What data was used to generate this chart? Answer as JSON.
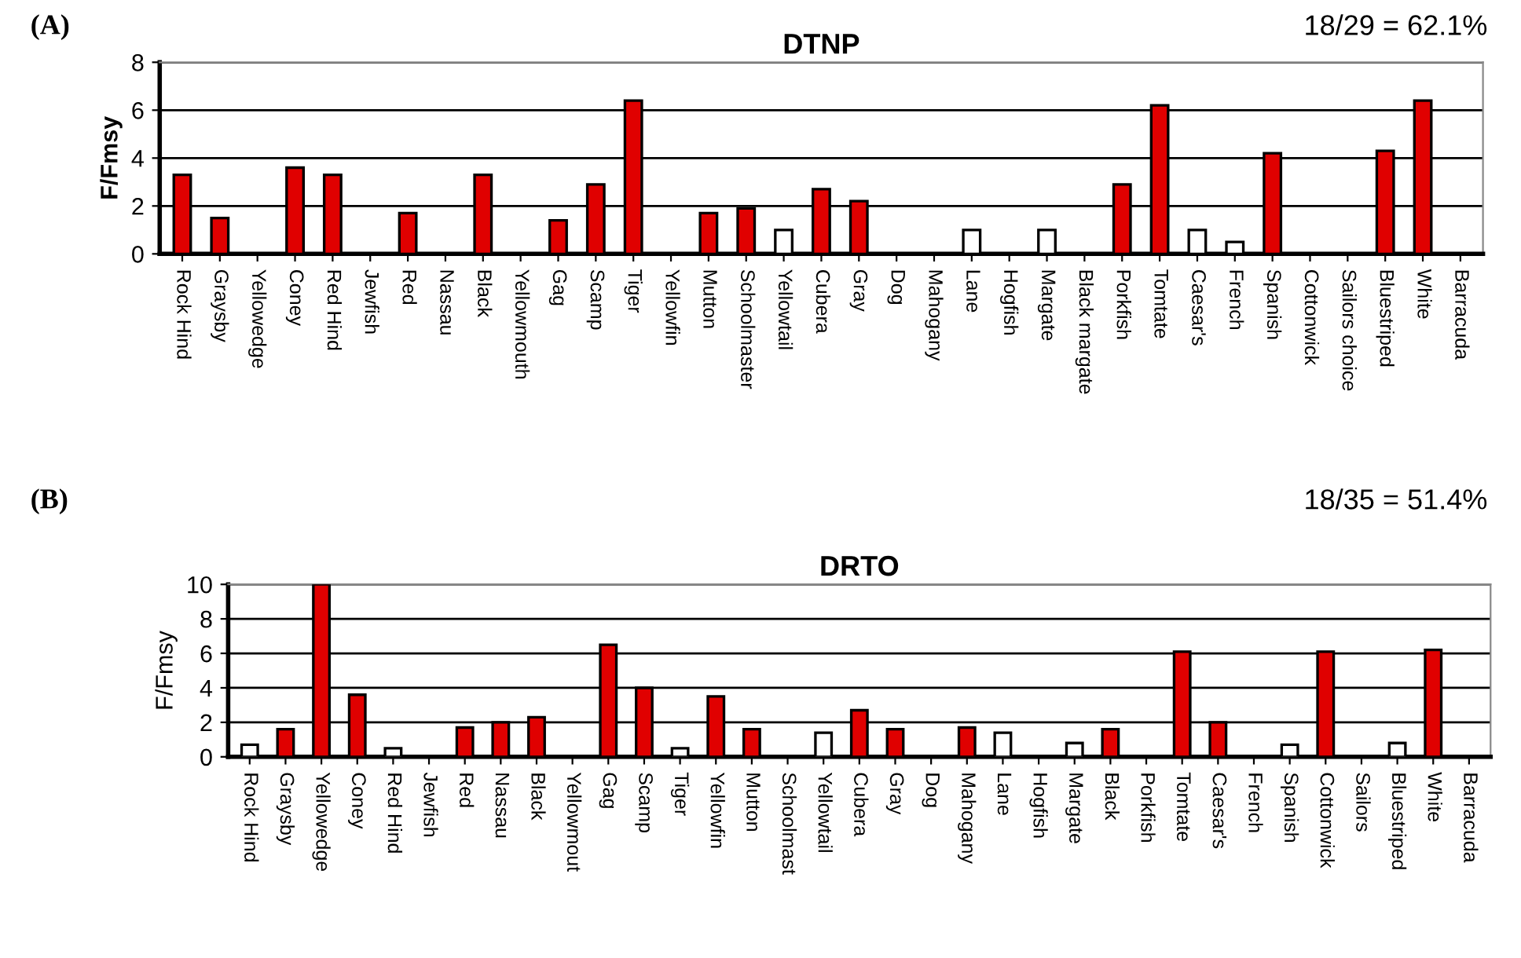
{
  "chart_data": [
    {
      "type": "bar",
      "title": "DTNP",
      "ylabel": "F/Fmsy",
      "annotations": [
        "(A)",
        "18/29 = 62.1%"
      ],
      "categories": [
        "Rock Hind",
        "Graysby",
        "Yellowedge",
        "Coney",
        "Red Hind",
        "Jewfish",
        "Red",
        "Nassau",
        "Black",
        "Yellowmouth",
        "Gag",
        "Scamp",
        "Tiger",
        "Yellowfin",
        "Mutton",
        "Schoolmaster",
        "Yellowtail",
        "Cubera",
        "Gray",
        "Dog",
        "Mahogany",
        "Lane",
        "Hogfish",
        "Margate",
        "Black margate",
        "Porkfish",
        "Tomtate",
        "Caesar's",
        "French",
        "Spanish",
        "Cottonwick",
        "Sailors choice",
        "Bluestriped",
        "White",
        "Barracuda"
      ],
      "values": [
        3.3,
        1.5,
        null,
        3.6,
        3.3,
        null,
        1.7,
        null,
        3.3,
        null,
        1.4,
        2.9,
        6.4,
        null,
        1.7,
        1.9,
        1.0,
        2.7,
        2.2,
        null,
        null,
        1.0,
        null,
        1.0,
        null,
        2.9,
        6.2,
        1.0,
        0.5,
        4.2,
        null,
        null,
        4.3,
        6.4,
        null
      ],
      "colors": [
        "#e00000",
        "#e00000",
        "#e00000",
        "#e00000",
        "#e00000",
        "#e00000",
        "#e00000",
        "#e00000",
        "#e00000",
        "#e00000",
        "#e00000",
        "#e00000",
        "#e00000",
        "#e00000",
        "#e00000",
        "#e00000",
        "#ffffff",
        "#e00000",
        "#e00000",
        "#e00000",
        "#e00000",
        "#ffffff",
        "#e00000",
        "#ffffff",
        "#e00000",
        "#e00000",
        "#e00000",
        "#ffffff",
        "#ffffff",
        "#e00000",
        "#e00000",
        "#e00000",
        "#e00000",
        "#e00000",
        "#e00000"
      ],
      "ylim": [
        0,
        8
      ],
      "yticks": [
        0,
        2,
        4,
        6,
        8
      ],
      "grid": "y"
    },
    {
      "type": "bar",
      "title": "DRTO",
      "ylabel": "F/Fmsy",
      "annotations": [
        "(B)",
        "18/35 = 51.4%"
      ],
      "categories": [
        "Rock Hind",
        "Graysby",
        "Yellowedge",
        "Coney",
        "Red Hind",
        "Jewfish",
        "Red",
        "Nassau",
        "Black",
        "Yellowmout",
        "Gag",
        "Scamp",
        "Tiger",
        "Yellowfin",
        "Mutton",
        "Schoolmast",
        "Yellowtail",
        "Cubera",
        "Gray",
        "Dog",
        "Mahogany",
        "Lane",
        "Hogfish",
        "Margate",
        "Black",
        "Porkfish",
        "Tomtate",
        "Caesar's",
        "French",
        "Spanish",
        "Cottonwick",
        "Sailors",
        "Bluestriped",
        "White",
        "Barracuda"
      ],
      "values": [
        0.7,
        1.6,
        10,
        3.6,
        0.5,
        null,
        1.7,
        2.0,
        2.3,
        null,
        6.5,
        4.0,
        0.5,
        3.5,
        1.6,
        null,
        1.4,
        2.7,
        1.6,
        null,
        1.7,
        1.4,
        null,
        0.8,
        1.6,
        null,
        6.1,
        2.0,
        null,
        0.7,
        6.1,
        null,
        0.8,
        6.2,
        null
      ],
      "colors": [
        "#ffffff",
        "#e00000",
        "#e00000",
        "#e00000",
        "#ffffff",
        "#e00000",
        "#e00000",
        "#e00000",
        "#e00000",
        "#e00000",
        "#e00000",
        "#e00000",
        "#ffffff",
        "#e00000",
        "#e00000",
        "#e00000",
        "#ffffff",
        "#e00000",
        "#e00000",
        "#e00000",
        "#e00000",
        "#ffffff",
        "#e00000",
        "#ffffff",
        "#e00000",
        "#e00000",
        "#e00000",
        "#e00000",
        "#e00000",
        "#ffffff",
        "#e00000",
        "#e00000",
        "#ffffff",
        "#e00000",
        "#e00000"
      ],
      "ylim": [
        0,
        10
      ],
      "yticks": [
        0,
        2,
        4,
        6,
        8,
        10
      ],
      "grid": "y"
    }
  ]
}
